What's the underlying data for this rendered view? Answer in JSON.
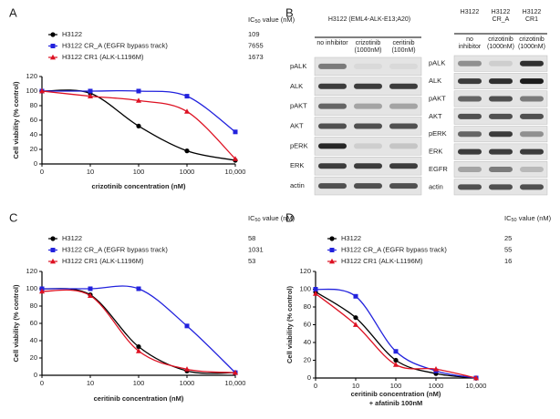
{
  "chart_data": [
    {
      "type": "line",
      "panel_label": "A",
      "ic50_header": {
        "prefix": "IC",
        "sub": "50",
        "suffix": " value (nM)"
      },
      "x_label": "crizotinib concentration (nM)",
      "y_label": "Cell viability (% control)",
      "x": [
        0,
        10,
        100,
        1000,
        10000
      ],
      "xscale": "log",
      "xlim": [
        0,
        10000
      ],
      "xticks": [
        0,
        10,
        100,
        1000,
        {
          "value": 10000,
          "label": "10,000"
        }
      ],
      "ylim": [
        0,
        120
      ],
      "yticks": [
        0,
        20,
        40,
        60,
        80,
        100,
        120
      ],
      "series": [
        {
          "name": "H3122",
          "color": "#000000",
          "marker": "circle",
          "ic50": 109,
          "values": [
            100,
            97,
            52,
            18,
            5
          ]
        },
        {
          "name": "H3122 CR_A (EGFR bypass track)",
          "color": "#2222dd",
          "marker": "square",
          "ic50": 7655,
          "values": [
            100,
            100,
            100,
            93,
            44
          ]
        },
        {
          "name": "H3122 CR1 (ALK-L1196M)",
          "color": "#dd1122",
          "marker": "triangle",
          "ic50": 1673,
          "values": [
            100,
            93,
            87,
            72,
            7
          ]
        }
      ]
    },
    {
      "type": "line",
      "panel_label": "C",
      "ic50_header": {
        "prefix": "IC",
        "sub": "50",
        "suffix": " value (nM)"
      },
      "x_label": "ceritinib concentration (nM)",
      "y_label": "Cell viability (% control)",
      "x": [
        0,
        10,
        100,
        1000,
        10000
      ],
      "xscale": "log",
      "xlim": [
        0,
        10000
      ],
      "xticks": [
        0,
        10,
        100,
        1000,
        {
          "value": 10000,
          "label": "10,000"
        }
      ],
      "ylim": [
        0,
        120
      ],
      "yticks": [
        0,
        20,
        40,
        60,
        80,
        100,
        120
      ],
      "series": [
        {
          "name": "H3122",
          "color": "#000000",
          "marker": "circle",
          "ic50": 58,
          "values": [
            100,
            93,
            33,
            5,
            3
          ]
        },
        {
          "name": "H3122 CR_A (EGFR bypass track)",
          "color": "#2222dd",
          "marker": "square",
          "ic50": 1031,
          "values": [
            100,
            100,
            100,
            57,
            3
          ]
        },
        {
          "name": "H3122 CR1 (ALK-L1196M)",
          "color": "#dd1122",
          "marker": "triangle",
          "ic50": 53,
          "values": [
            97,
            92,
            28,
            7,
            3
          ]
        }
      ]
    },
    {
      "type": "line",
      "panel_label": "D",
      "ic50_header": {
        "prefix": "IC",
        "sub": "50",
        "suffix": " value (nM)"
      },
      "x_label": "ceritinib concentration (nM)",
      "x_label_2": "+ afatinib 100nM",
      "y_label": "Cell viability (% control)",
      "x": [
        0,
        10,
        100,
        1000,
        10000
      ],
      "xscale": "log",
      "xlim": [
        0,
        10000
      ],
      "xticks": [
        0,
        10,
        100,
        1000,
        {
          "value": 10000,
          "label": "10,000"
        }
      ],
      "ylim": [
        0,
        120
      ],
      "yticks": [
        0,
        20,
        40,
        60,
        80,
        100,
        120
      ],
      "series": [
        {
          "name": "H3122",
          "color": "#000000",
          "marker": "circle",
          "ic50": 25,
          "values": [
            97,
            68,
            20,
            5,
            0
          ]
        },
        {
          "name": "H3122 CR_A (EGFR bypass track)",
          "color": "#2222dd",
          "marker": "square",
          "ic50": 55,
          "values": [
            100,
            92,
            30,
            8,
            0
          ]
        },
        {
          "name": "H3122 CR1 (ALK-L1196M)",
          "color": "#dd1122",
          "marker": "triangle",
          "ic50": 16,
          "values": [
            95,
            60,
            15,
            10,
            0
          ]
        }
      ]
    }
  ],
  "blot": {
    "panel_label": "B",
    "left": {
      "title": "H3122 (EML4-ALK-E13;A20)",
      "lanes": [
        "no inhibitor",
        "crizotinib (1000nM)",
        "ceritinib (100nM)"
      ],
      "rows": [
        "pALK",
        "ALK",
        "pAKT",
        "AKT",
        "pERK",
        "ERK",
        "actin"
      ]
    },
    "right": {
      "cell_lines": [
        "H3122",
        "H3122 CR_A",
        "H3122 CR1"
      ],
      "lanes": [
        "no inhibitor",
        "crizotinib (1000nM)",
        "crizotinib (1000nM)"
      ],
      "rows": [
        "pALK",
        "ALK",
        "pAKT",
        "AKT",
        "pERK",
        "ERK",
        "EGFR",
        "actin"
      ]
    }
  }
}
